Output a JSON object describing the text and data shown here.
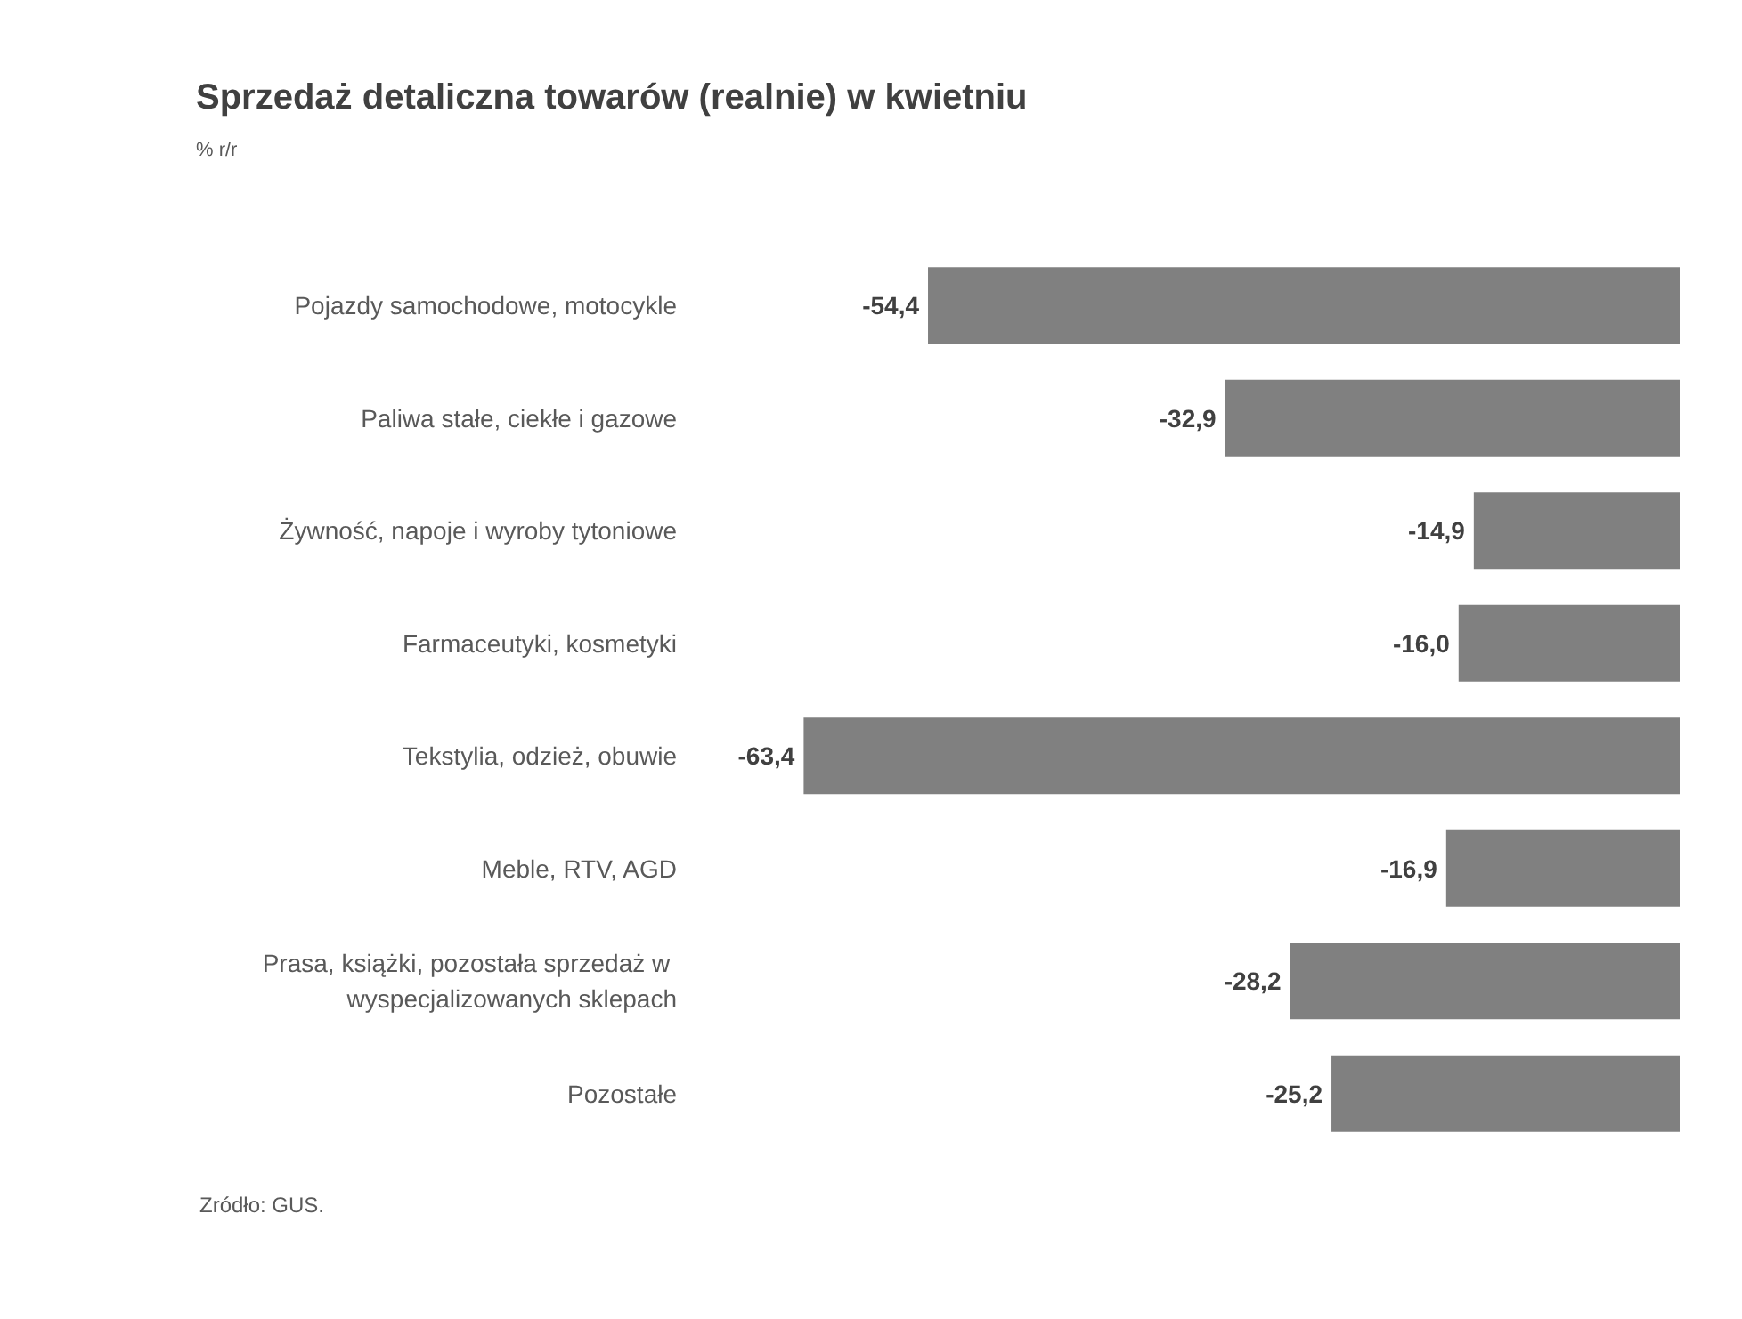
{
  "chart_data": {
    "type": "bar",
    "orientation": "horizontal",
    "title": "Sprzedaż detaliczna towarów (realnie) w kwietniu",
    "subtitle": "% r/r",
    "categories": [
      "Pojazdy samochodowe, motocykle",
      "Paliwa stałe, ciekłe i gazowe",
      "Żywność, napoje i wyroby tytoniowe",
      "Farmaceutyki, kosmetyki",
      "Tekstylia, odzież, obuwie",
      "Meble, RTV, AGD",
      "Prasa, książki, pozostała sprzedaż w wyspecjalizowanych sklepach",
      "Pozostałe"
    ],
    "values": [
      -54.4,
      -32.9,
      -14.9,
      -16.0,
      -63.4,
      -16.9,
      -28.2,
      -25.2
    ],
    "value_labels": [
      "-54,4",
      "-32,9",
      "-14,9",
      "-16,0",
      "-63,4",
      "-16,9",
      "-28,2",
      "-25,2"
    ],
    "color": "#808080",
    "annotations": [
      "Zródło: GUS."
    ]
  }
}
